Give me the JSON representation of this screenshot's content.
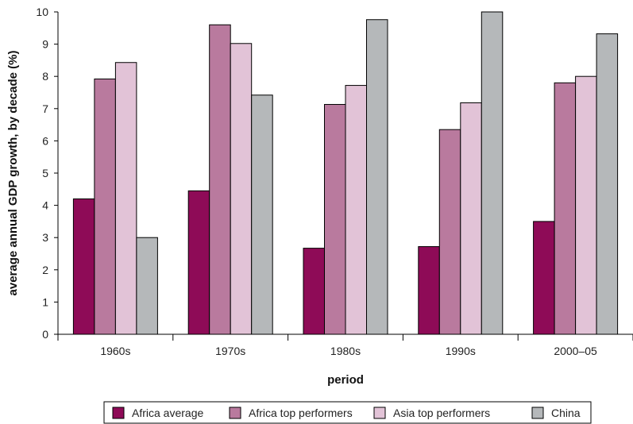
{
  "chart_data": {
    "type": "bar",
    "title": "",
    "xlabel": "period",
    "ylabel": "average annual GDP growth, by decade (%)",
    "ylim": [
      0,
      10
    ],
    "yticks": [
      "0",
      "1",
      "2",
      "3",
      "4",
      "5",
      "6",
      "7",
      "8",
      "9",
      "10"
    ],
    "grid": false,
    "legend_position": "bottom",
    "categories": [
      "1960s",
      "1970s",
      "1980s",
      "1990s",
      "2000–05"
    ],
    "series": [
      {
        "name": "Africa average",
        "color": "#8e0b57",
        "values": [
          4.2,
          4.45,
          2.67,
          2.72,
          3.5
        ]
      },
      {
        "name": "Africa top performers",
        "color": "#b97a9e",
        "values": [
          7.92,
          9.6,
          7.13,
          6.35,
          7.8
        ]
      },
      {
        "name": "Asia top performers",
        "color": "#e2c3d7",
        "values": [
          8.43,
          9.02,
          7.72,
          7.18,
          8.0
        ]
      },
      {
        "name": "China",
        "color": "#b5b8ba",
        "values": [
          3.0,
          7.42,
          9.76,
          10.0,
          9.32
        ]
      }
    ]
  }
}
